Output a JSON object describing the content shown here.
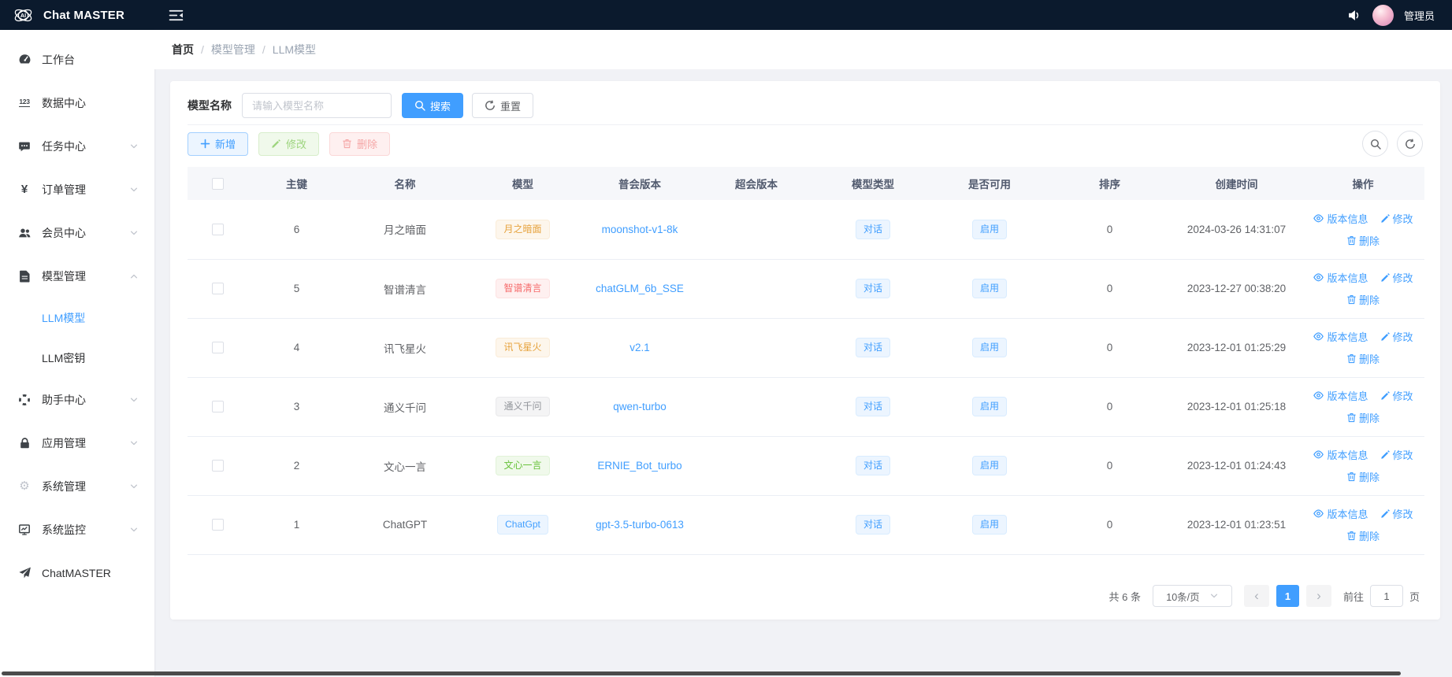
{
  "topbar": {
    "title": "Chat MASTER",
    "user": "管理员"
  },
  "breadcrumb": {
    "separator": "/",
    "items": [
      "首页",
      "模型管理",
      "LLM模型"
    ]
  },
  "sidebar": {
    "items": [
      {
        "key": "workbench",
        "label": "工作台",
        "icon": "dashboard-icon"
      },
      {
        "key": "data-center",
        "label": "数据中心",
        "icon": "numbers-icon"
      },
      {
        "key": "task-center",
        "label": "任务中心",
        "icon": "chat-icon",
        "expandable": true
      },
      {
        "key": "order-management",
        "label": "订单管理",
        "icon": "yen-icon",
        "expandable": true
      },
      {
        "key": "member-center",
        "label": "会员中心",
        "icon": "users-icon",
        "expandable": true
      },
      {
        "key": "model-management",
        "label": "模型管理",
        "icon": "document-icon",
        "expandable": true,
        "expanded": true,
        "children": [
          {
            "key": "llm-model",
            "label": "LLM模型",
            "active": true
          },
          {
            "key": "llm-key",
            "label": "LLM密钥"
          }
        ]
      },
      {
        "key": "assistant-center",
        "label": "助手中心",
        "icon": "assistant-icon",
        "expandable": true
      },
      {
        "key": "app-management",
        "label": "应用管理",
        "icon": "lock-icon",
        "expandable": true
      },
      {
        "key": "system-management",
        "label": "系统管理",
        "icon": "gear-icon",
        "muted": true,
        "expandable": true
      },
      {
        "key": "system-monitor",
        "label": "系统监控",
        "icon": "monitor-icon",
        "expandable": true
      },
      {
        "key": "chatmaster",
        "label": "ChatMASTER",
        "icon": "send-icon"
      }
    ]
  },
  "search": {
    "label": "模型名称",
    "placeholder": "请输入模型名称",
    "value": "",
    "search_label": "搜索",
    "reset_label": "重置"
  },
  "toolbar": {
    "add_label": "新增",
    "edit_label": "修改",
    "delete_label": "删除"
  },
  "table": {
    "headers": [
      "主键",
      "名称",
      "模型",
      "普会版本",
      "超会版本",
      "模型类型",
      "是否可用",
      "排序",
      "创建时间",
      "操作"
    ],
    "actions": {
      "version": "版本信息",
      "edit": "修改",
      "delete": "删除"
    },
    "rows": [
      {
        "id": "6",
        "name": "月之暗面",
        "tag": "月之暗面",
        "tag_type": "warning",
        "version": "moonshot-v1-8k",
        "super_version": "",
        "model_type": "对话",
        "status": "启用",
        "sort": "0",
        "created": "2024-03-26 14:31:07"
      },
      {
        "id": "5",
        "name": "智谱清言",
        "tag": "智谱清言",
        "tag_type": "danger",
        "version": "chatGLM_6b_SSE",
        "super_version": "",
        "model_type": "对话",
        "status": "启用",
        "sort": "0",
        "created": "2023-12-27 00:38:20"
      },
      {
        "id": "4",
        "name": "讯飞星火",
        "tag": "讯飞星火",
        "tag_type": "warning",
        "version": "v2.1",
        "super_version": "",
        "model_type": "对话",
        "status": "启用",
        "sort": "0",
        "created": "2023-12-01 01:25:29"
      },
      {
        "id": "3",
        "name": "通义千问",
        "tag": "通义千问",
        "tag_type": "info",
        "version": "qwen-turbo",
        "super_version": "",
        "model_type": "对话",
        "status": "启用",
        "sort": "0",
        "created": "2023-12-01 01:25:18"
      },
      {
        "id": "2",
        "name": "文心一言",
        "tag": "文心一言",
        "tag_type": "success",
        "version": "ERNIE_Bot_turbo",
        "super_version": "",
        "model_type": "对话",
        "status": "启用",
        "sort": "0",
        "created": "2023-12-01 01:24:43"
      },
      {
        "id": "1",
        "name": "ChatGPT",
        "tag": "ChatGpt",
        "tag_type": "primary",
        "version": "gpt-3.5-turbo-0613",
        "super_version": "",
        "model_type": "对话",
        "status": "启用",
        "sort": "0",
        "created": "2023-12-01 01:23:51"
      }
    ]
  },
  "pagination": {
    "total_label": "共 6 条",
    "page_size": "10条/页",
    "prev_glyph": "‹",
    "next_glyph": "›",
    "current_page": "1",
    "goto_label": "前往",
    "goto_value": "1",
    "goto_suffix": "页"
  },
  "colors": {
    "topbar_bg": "#0b1a2d",
    "accent": "#409eff",
    "tag_primary": "#409eff",
    "tag_success": "#67c23a",
    "tag_info": "#909399",
    "tag_warning": "#e6a23c",
    "tag_danger": "#f56c6c"
  }
}
